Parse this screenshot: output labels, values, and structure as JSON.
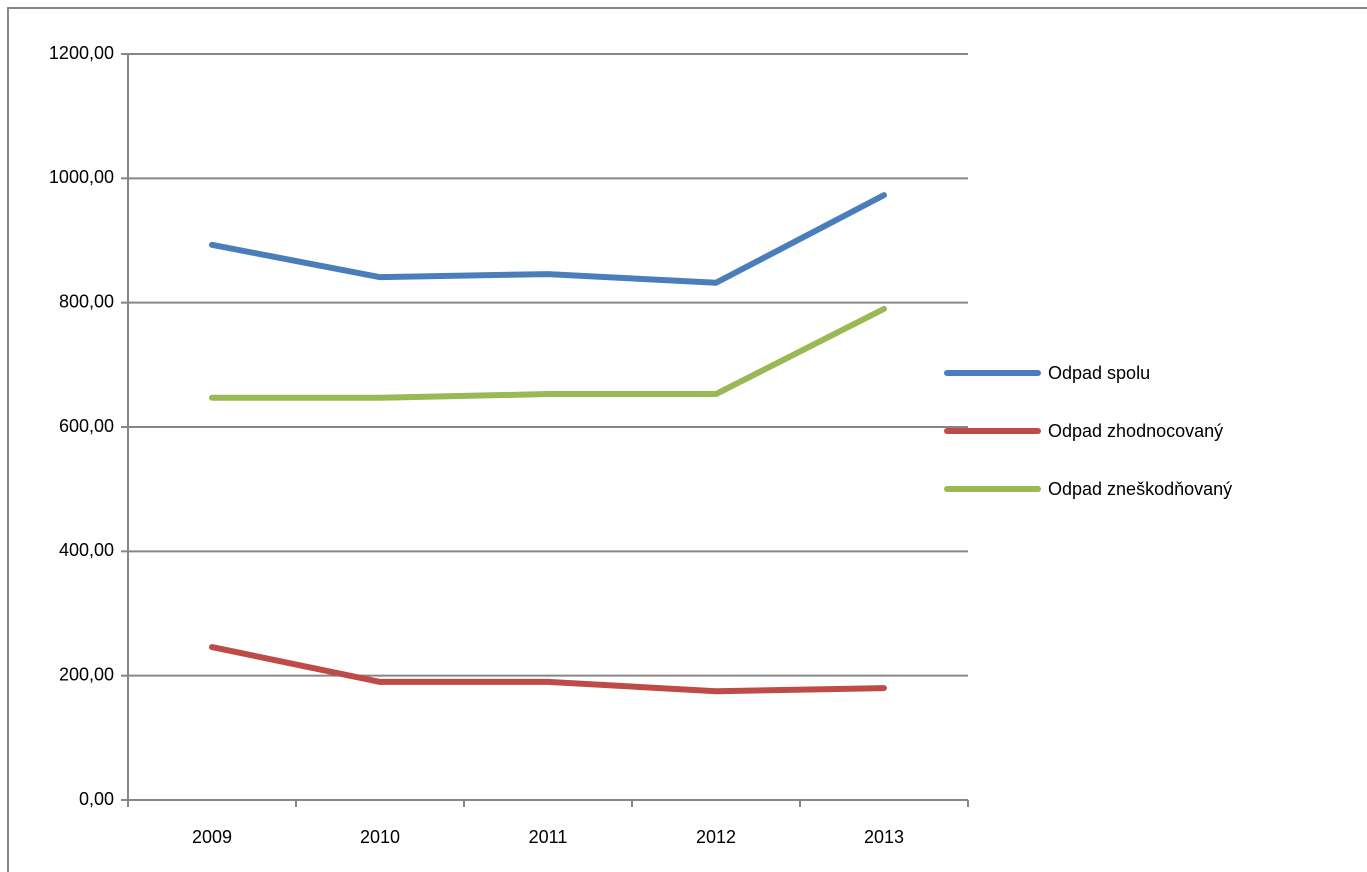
{
  "chart_data": {
    "type": "line",
    "categories": [
      "2009",
      "2010",
      "2011",
      "2012",
      "2013"
    ],
    "series": [
      {
        "name": "Odpad spolu",
        "color": "#4a7ebb",
        "values": [
          893,
          841,
          846,
          832,
          973
        ]
      },
      {
        "name": "Odpad zhodnocovaný",
        "color": "#be4b48",
        "values": [
          246,
          190,
          190,
          175,
          180
        ]
      },
      {
        "name": "Odpad zneškodňovaný",
        "color": "#98b954",
        "values": [
          647,
          647,
          653,
          653,
          790
        ]
      }
    ],
    "ylim": [
      0,
      1200
    ],
    "yticks": [
      {
        "value": 0,
        "label": "0,00"
      },
      {
        "value": 200,
        "label": "200,00"
      },
      {
        "value": 400,
        "label": "400,00"
      },
      {
        "value": 600,
        "label": "600,00"
      },
      {
        "value": 800,
        "label": "800,00"
      },
      {
        "value": 1000,
        "label": "1000,00"
      },
      {
        "value": 1200,
        "label": "1200,00"
      }
    ],
    "grid": true,
    "legend": "right"
  }
}
